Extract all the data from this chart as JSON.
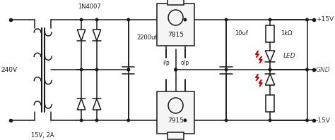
{
  "bg_color": "#ffffff",
  "line_color": "#1a1a1a",
  "red_color": "#cc0000",
  "text_color": "#1a1a1a",
  "fig_width": 4.74,
  "fig_height": 1.99,
  "dpi": 100,
  "labels": {
    "input_voltage": "240V",
    "transformer_label": "15V, 2A",
    "diode_label": "1N4007",
    "cap1_label": "2200uf",
    "cap2_label": "10uf",
    "res_label": "1kΩ",
    "led_label": "LED",
    "gnd_label": "GND",
    "plus15": "+15V",
    "minus15": "-15V",
    "ic1_label": "7815",
    "ic2_label": "7915",
    "ip_label": "i/p",
    "op_label": "o/p"
  }
}
